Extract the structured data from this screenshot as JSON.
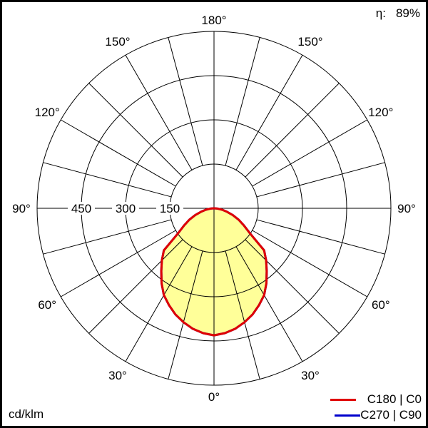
{
  "efficiency": {
    "symbol": "η:",
    "value": "89%"
  },
  "unit": "cd/klm",
  "chart_data": {
    "type": "polar",
    "radial_ticks": [
      150,
      300,
      450
    ],
    "radial_max": 600,
    "radial_tick_labels": [
      "150",
      "300",
      "450"
    ],
    "angle_labels": [
      {
        "angle": 0,
        "text": "0°"
      },
      {
        "angle": 30,
        "text": "30°"
      },
      {
        "angle": -30,
        "text": "30°"
      },
      {
        "angle": 60,
        "text": "60°"
      },
      {
        "angle": -60,
        "text": "60°"
      },
      {
        "angle": 90,
        "text": "90°"
      },
      {
        "angle": -90,
        "text": "90°"
      },
      {
        "angle": 120,
        "text": "120°"
      },
      {
        "angle": -120,
        "text": "120°"
      },
      {
        "angle": 150,
        "text": "150°"
      },
      {
        "angle": -150,
        "text": "150°"
      },
      {
        "angle": 180,
        "text": "180°"
      }
    ],
    "spoke_step_deg": 15,
    "gamma": [
      0,
      5,
      10,
      15,
      20,
      25,
      30,
      35,
      40,
      45,
      50,
      55,
      60,
      65,
      70,
      75,
      80,
      85,
      90
    ],
    "series": [
      {
        "name": "C270 | C90",
        "color": "#0000cc",
        "values": [
          431,
          425,
          415,
          400,
          383,
          362,
          340,
          310,
          278,
          250,
          222,
          150,
          118,
          93,
          68,
          45,
          28,
          12,
          0
        ]
      },
      {
        "name": "C180 | C0",
        "color": "#e00000",
        "values": [
          431,
          425,
          415,
          400,
          383,
          362,
          340,
          310,
          278,
          250,
          222,
          150,
          118,
          93,
          68,
          45,
          28,
          12,
          0
        ]
      }
    ],
    "fill_color": "#ffff99"
  }
}
